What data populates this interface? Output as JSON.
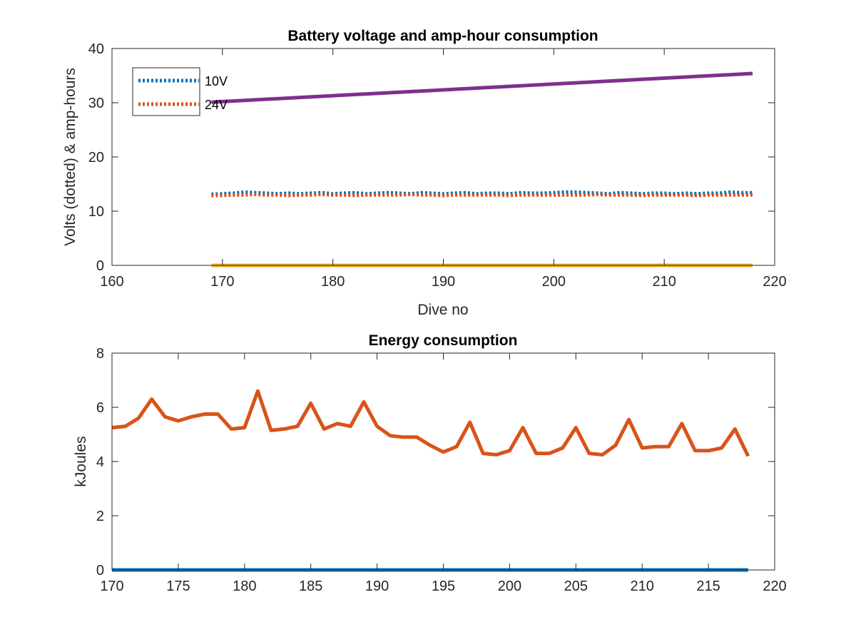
{
  "chart_data": [
    {
      "type": "line",
      "title": "Battery voltage and amp-hour consumption",
      "xlabel": "Dive no",
      "ylabel": "Volts (dotted) & amp-hours",
      "xlim": [
        160,
        220
      ],
      "ylim": [
        0,
        40
      ],
      "xticks": [
        "160",
        "170",
        "180",
        "190",
        "200",
        "210",
        "220"
      ],
      "yticks": [
        "0",
        "10",
        "20",
        "30",
        "40"
      ],
      "legend_placement": "top-left",
      "x": [
        169,
        170,
        171,
        172,
        173,
        174,
        175,
        176,
        177,
        178,
        179,
        180,
        181,
        182,
        183,
        184,
        185,
        186,
        187,
        188,
        189,
        190,
        191,
        192,
        193,
        194,
        195,
        196,
        197,
        198,
        199,
        200,
        201,
        202,
        203,
        204,
        205,
        206,
        207,
        208,
        209,
        210,
        211,
        212,
        213,
        214,
        215,
        216,
        217,
        218
      ],
      "series": [
        {
          "name": "10V",
          "style": "dotted",
          "color": "#0072BD",
          "values": [
            13.1,
            13.2,
            13.3,
            13.5,
            13.4,
            13.3,
            13.2,
            13.3,
            13.2,
            13.3,
            13.4,
            13.2,
            13.3,
            13.4,
            13.2,
            13.3,
            13.4,
            13.3,
            13.2,
            13.4,
            13.3,
            13.2,
            13.3,
            13.4,
            13.2,
            13.3,
            13.3,
            13.2,
            13.4,
            13.3,
            13.3,
            13.4,
            13.5,
            13.5,
            13.4,
            13.3,
            13.2,
            13.4,
            13.3,
            13.2,
            13.3,
            13.3,
            13.2,
            13.3,
            13.2,
            13.3,
            13.3,
            13.5,
            13.4,
            13.4
          ]
        },
        {
          "name": "24V",
          "style": "dotted",
          "color": "#D95319",
          "values": [
            12.9,
            12.9,
            13.0,
            13.0,
            13.1,
            13.0,
            13.0,
            12.9,
            13.0,
            13.0,
            13.1,
            13.0,
            13.0,
            12.9,
            13.0,
            13.0,
            13.0,
            13.0,
            13.1,
            13.0,
            13.0,
            12.9,
            13.0,
            13.0,
            13.0,
            13.0,
            13.0,
            12.9,
            13.0,
            13.0,
            13.0,
            13.0,
            13.0,
            13.0,
            13.0,
            13.1,
            13.0,
            13.0,
            13.0,
            12.9,
            13.0,
            13.0,
            13.0,
            13.0,
            12.9,
            13.0,
            13.0,
            13.0,
            13.0,
            13.0
          ]
        },
        {
          "style": "solid",
          "color": "#EDB120",
          "values": [
            0,
            0,
            0,
            0,
            0,
            0,
            0,
            0,
            0,
            0,
            0,
            0,
            0,
            0,
            0,
            0,
            0,
            0,
            0,
            0,
            0,
            0,
            0,
            0,
            0,
            0,
            0,
            0,
            0,
            0,
            0,
            0,
            0,
            0,
            0,
            0,
            0,
            0,
            0,
            0,
            0,
            0,
            0,
            0,
            0,
            0,
            0,
            0,
            0,
            0
          ]
        },
        {
          "style": "solid",
          "color": "#7E2F8E",
          "start": [
            169,
            30.1
          ],
          "end": [
            218,
            35.4
          ]
        }
      ]
    },
    {
      "type": "line",
      "title": "Energy consumption",
      "xlabel": "",
      "ylabel": "kJoules",
      "xlim": [
        170,
        220
      ],
      "ylim": [
        0,
        8
      ],
      "xticks": [
        "170",
        "175",
        "180",
        "185",
        "190",
        "195",
        "200",
        "205",
        "210",
        "215",
        "220"
      ],
      "yticks": [
        "0",
        "2",
        "4",
        "6",
        "8"
      ],
      "x": [
        170,
        171,
        172,
        173,
        174,
        175,
        176,
        177,
        178,
        179,
        180,
        181,
        182,
        183,
        184,
        185,
        186,
        187,
        188,
        189,
        190,
        191,
        192,
        193,
        194,
        195,
        196,
        197,
        198,
        199,
        200,
        201,
        202,
        203,
        204,
        205,
        206,
        207,
        208,
        209,
        210,
        211,
        212,
        213,
        214,
        215,
        216,
        217,
        218
      ],
      "series": [
        {
          "style": "solid",
          "color": "#D95319",
          "values": [
            5.25,
            5.3,
            5.6,
            6.3,
            5.65,
            5.5,
            5.65,
            5.75,
            5.75,
            5.2,
            5.25,
            6.6,
            5.15,
            5.2,
            5.3,
            6.15,
            5.2,
            5.4,
            5.3,
            6.2,
            5.3,
            4.95,
            4.9,
            4.9,
            4.6,
            4.35,
            4.55,
            5.45,
            4.3,
            4.25,
            4.4,
            5.25,
            4.3,
            4.3,
            4.5,
            5.25,
            4.3,
            4.25,
            4.6,
            5.55,
            4.5,
            4.55,
            4.55,
            5.4,
            4.4,
            4.4,
            4.5,
            5.2,
            4.2
          ]
        },
        {
          "style": "solid",
          "color": "#0072BD",
          "start": [
            170,
            0
          ],
          "end": [
            218,
            0
          ]
        }
      ]
    }
  ]
}
